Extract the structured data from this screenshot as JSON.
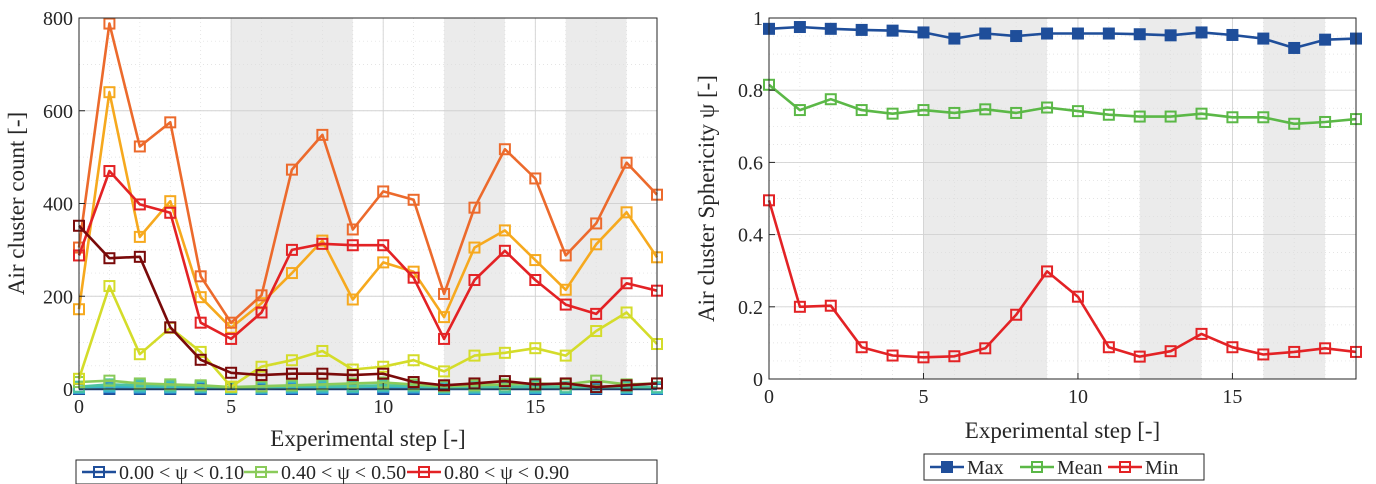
{
  "chart_data": [
    {
      "type": "line",
      "title": "",
      "xlabel": "Experimental step [-]",
      "ylabel": "Air cluster count [-]",
      "xlim": [
        0,
        19
      ],
      "ylim": [
        0,
        800
      ],
      "xticks": [
        0,
        5,
        10,
        15
      ],
      "yticks": [
        0,
        200,
        400,
        600,
        800
      ],
      "grid": true,
      "shaded_x_ranges": [
        [
          5,
          9
        ],
        [
          12,
          14
        ],
        [
          16,
          18
        ]
      ],
      "legend": {
        "placement": "bottom-outside",
        "labels": [
          "0.00 < ψ < 0.10",
          "0.40 < ψ < 0.50",
          "0.80 < ψ < 0.90"
        ]
      },
      "x": [
        0,
        1,
        2,
        3,
        4,
        5,
        6,
        7,
        8,
        9,
        10,
        11,
        12,
        13,
        14,
        15,
        16,
        17,
        18,
        19
      ],
      "series": [
        {
          "name": "0.00 < ψ < 0.10",
          "color": "#1f4e9a",
          "values": [
            0,
            0,
            0,
            0,
            0,
            0,
            0,
            0,
            0,
            0,
            0,
            0,
            0,
            0,
            0,
            0,
            0,
            0,
            0,
            0
          ]
        },
        {
          "color": "#2f8fd4",
          "values": [
            2,
            4,
            3,
            3,
            3,
            1,
            1,
            2,
            2,
            3,
            4,
            3,
            1,
            1,
            2,
            2,
            1,
            2,
            2,
            1
          ]
        },
        {
          "color": "#3ab7c8",
          "values": [
            3,
            6,
            5,
            4,
            4,
            2,
            3,
            4,
            4,
            4,
            6,
            5,
            2,
            3,
            3,
            3,
            2,
            3,
            3,
            2
          ]
        },
        {
          "color": "#4cc3a0",
          "values": [
            5,
            10,
            8,
            7,
            6,
            3,
            4,
            6,
            7,
            6,
            8,
            7,
            4,
            5,
            5,
            6,
            4,
            5,
            5,
            4
          ]
        },
        {
          "name": "0.40 < ψ < 0.50",
          "color": "#8acb5a",
          "values": [
            15,
            18,
            12,
            10,
            8,
            4,
            6,
            8,
            10,
            12,
            14,
            10,
            6,
            8,
            10,
            12,
            10,
            18,
            10,
            12
          ]
        },
        {
          "color": "#d4dc2a",
          "values": [
            22,
            222,
            75,
            132,
            80,
            5,
            48,
            62,
            82,
            42,
            48,
            62,
            38,
            72,
            78,
            88,
            72,
            125,
            165,
            97
          ]
        },
        {
          "color": "#f6a91e",
          "values": [
            172,
            640,
            328,
            405,
            198,
            132,
            185,
            250,
            320,
            193,
            273,
            253,
            155,
            305,
            342,
            278,
            214,
            312,
            381,
            284
          ]
        },
        {
          "color": "#ec6a2c",
          "values": [
            305,
            788,
            523,
            575,
            243,
            143,
            202,
            473,
            548,
            344,
            426,
            408,
            205,
            391,
            517,
            454,
            288,
            357,
            488,
            419
          ]
        },
        {
          "name": "0.80 < ψ < 0.90",
          "color": "#e32225",
          "values": [
            288,
            470,
            398,
            380,
            143,
            108,
            165,
            300,
            313,
            310,
            310,
            240,
            108,
            235,
            298,
            235,
            182,
            162,
            228,
            212
          ]
        },
        {
          "color": "#7a0a0a",
          "values": [
            352,
            282,
            285,
            133,
            63,
            35,
            30,
            33,
            33,
            30,
            33,
            15,
            8,
            12,
            17,
            10,
            12,
            4,
            8,
            12
          ]
        }
      ]
    },
    {
      "type": "line",
      "title": "",
      "xlabel": "Experimental step [-]",
      "ylabel": "Air cluster Sphericity ψ [-]",
      "xlim": [
        0,
        19
      ],
      "ylim": [
        0,
        1
      ],
      "xticks": [
        0,
        5,
        10,
        15
      ],
      "yticks": [
        0,
        0.2,
        0.4,
        0.6,
        0.8,
        1
      ],
      "grid": true,
      "shaded_x_ranges": [
        [
          5,
          9
        ],
        [
          12,
          14
        ],
        [
          16,
          18
        ]
      ],
      "legend": {
        "placement": "bottom-outside",
        "labels": [
          "Max",
          "Mean",
          "Min"
        ]
      },
      "x": [
        0,
        1,
        2,
        3,
        4,
        5,
        6,
        7,
        8,
        9,
        10,
        11,
        12,
        13,
        14,
        15,
        16,
        17,
        18,
        19
      ],
      "series": [
        {
          "name": "Max",
          "color": "#1f4e9a",
          "values": [
            0.97,
            0.975,
            0.97,
            0.967,
            0.965,
            0.96,
            0.943,
            0.957,
            0.95,
            0.957,
            0.957,
            0.957,
            0.955,
            0.952,
            0.96,
            0.953,
            0.943,
            0.917,
            0.94,
            0.943
          ]
        },
        {
          "name": "Mean",
          "color": "#5bb847",
          "values": [
            0.815,
            0.745,
            0.775,
            0.745,
            0.735,
            0.745,
            0.737,
            0.747,
            0.737,
            0.752,
            0.742,
            0.732,
            0.727,
            0.727,
            0.735,
            0.725,
            0.725,
            0.707,
            0.712,
            0.72
          ]
        },
        {
          "name": "Min",
          "color": "#e32225",
          "values": [
            0.495,
            0.2,
            0.203,
            0.088,
            0.065,
            0.06,
            0.063,
            0.085,
            0.178,
            0.298,
            0.228,
            0.088,
            0.062,
            0.077,
            0.125,
            0.088,
            0.068,
            0.075,
            0.085,
            0.075
          ]
        }
      ]
    }
  ]
}
